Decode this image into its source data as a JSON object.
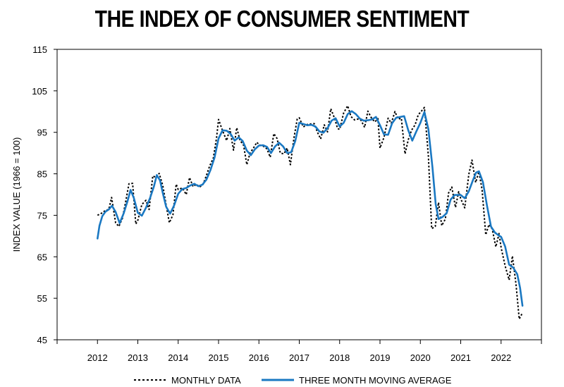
{
  "chart_data": {
    "type": "line",
    "title": "THE INDEX OF CONSUMER SENTIMENT",
    "ylabel": "INDEX VALUE (1966 = 100)",
    "xlabel": "",
    "ylim": [
      45,
      115
    ],
    "yticks": [
      "115",
      "105",
      "95",
      "85",
      "75",
      "65",
      "55",
      "45"
    ],
    "xlim": [
      2011,
      2023
    ],
    "xticks": [
      "2012",
      "2013",
      "2014",
      "2015",
      "2016",
      "2017",
      "2018",
      "2019",
      "2020",
      "2021",
      "2022"
    ],
    "grid": false,
    "legend_position": "bottom",
    "series": [
      {
        "name": "MONTHLY DATA",
        "color": "#000000",
        "style": "dotted",
        "points": [
          [
            2012.0,
            75.0
          ],
          [
            2012.1,
            75.5
          ],
          [
            2012.2,
            76.2
          ],
          [
            2012.28,
            76.4
          ],
          [
            2012.35,
            79.3
          ],
          [
            2012.45,
            73.2
          ],
          [
            2012.53,
            72.3
          ],
          [
            2012.62,
            74.3
          ],
          [
            2012.7,
            78.3
          ],
          [
            2012.78,
            82.6
          ],
          [
            2012.87,
            82.7
          ],
          [
            2012.95,
            72.9
          ],
          [
            2013.0,
            73.8
          ],
          [
            2013.1,
            77.6
          ],
          [
            2013.2,
            78.6
          ],
          [
            2013.28,
            76.4
          ],
          [
            2013.37,
            84.5
          ],
          [
            2013.45,
            84.1
          ],
          [
            2013.53,
            85.1
          ],
          [
            2013.62,
            82.1
          ],
          [
            2013.7,
            77.5
          ],
          [
            2013.78,
            73.2
          ],
          [
            2013.87,
            75.1
          ],
          [
            2013.95,
            82.5
          ],
          [
            2014.0,
            81.2
          ],
          [
            2014.1,
            81.6
          ],
          [
            2014.2,
            80.0
          ],
          [
            2014.28,
            84.1
          ],
          [
            2014.37,
            81.9
          ],
          [
            2014.45,
            82.5
          ],
          [
            2014.53,
            81.8
          ],
          [
            2014.62,
            82.5
          ],
          [
            2014.7,
            84.6
          ],
          [
            2014.78,
            86.9
          ],
          [
            2014.87,
            88.8
          ],
          [
            2014.95,
            93.6
          ],
          [
            2015.0,
            98.1
          ],
          [
            2015.1,
            95.4
          ],
          [
            2015.2,
            93.0
          ],
          [
            2015.28,
            95.9
          ],
          [
            2015.37,
            90.7
          ],
          [
            2015.45,
            96.1
          ],
          [
            2015.53,
            93.1
          ],
          [
            2015.62,
            91.9
          ],
          [
            2015.7,
            87.2
          ],
          [
            2015.78,
            90.0
          ],
          [
            2015.87,
            91.3
          ],
          [
            2015.95,
            92.6
          ],
          [
            2016.0,
            92.0
          ],
          [
            2016.1,
            91.7
          ],
          [
            2016.2,
            91.0
          ],
          [
            2016.28,
            89.0
          ],
          [
            2016.37,
            94.7
          ],
          [
            2016.45,
            93.5
          ],
          [
            2016.53,
            90.0
          ],
          [
            2016.62,
            89.8
          ],
          [
            2016.7,
            91.2
          ],
          [
            2016.78,
            87.2
          ],
          [
            2016.87,
            93.8
          ],
          [
            2016.95,
            98.2
          ],
          [
            2017.0,
            98.5
          ],
          [
            2017.1,
            96.3
          ],
          [
            2017.2,
            96.9
          ],
          [
            2017.28,
            97.0
          ],
          [
            2017.37,
            97.1
          ],
          [
            2017.45,
            95.0
          ],
          [
            2017.53,
            93.4
          ],
          [
            2017.62,
            96.8
          ],
          [
            2017.7,
            95.1
          ],
          [
            2017.78,
            100.7
          ],
          [
            2017.87,
            98.5
          ],
          [
            2017.95,
            95.9
          ],
          [
            2018.0,
            95.7
          ],
          [
            2018.1,
            99.7
          ],
          [
            2018.2,
            101.4
          ],
          [
            2018.28,
            98.8
          ],
          [
            2018.37,
            98.0
          ],
          [
            2018.45,
            98.2
          ],
          [
            2018.53,
            97.9
          ],
          [
            2018.62,
            96.2
          ],
          [
            2018.7,
            100.1
          ],
          [
            2018.78,
            98.6
          ],
          [
            2018.87,
            97.5
          ],
          [
            2018.95,
            98.3
          ],
          [
            2019.0,
            91.2
          ],
          [
            2019.1,
            93.8
          ],
          [
            2019.2,
            98.4
          ],
          [
            2019.28,
            97.2
          ],
          [
            2019.37,
            100.0
          ],
          [
            2019.45,
            98.2
          ],
          [
            2019.53,
            98.4
          ],
          [
            2019.62,
            89.8
          ],
          [
            2019.7,
            93.2
          ],
          [
            2019.78,
            95.5
          ],
          [
            2019.87,
            96.8
          ],
          [
            2019.95,
            99.3
          ],
          [
            2020.0,
            99.8
          ],
          [
            2020.1,
            101.0
          ],
          [
            2020.2,
            89.1
          ],
          [
            2020.28,
            71.8
          ],
          [
            2020.37,
            72.3
          ],
          [
            2020.45,
            78.1
          ],
          [
            2020.53,
            72.5
          ],
          [
            2020.62,
            74.1
          ],
          [
            2020.7,
            80.4
          ],
          [
            2020.78,
            81.8
          ],
          [
            2020.87,
            76.9
          ],
          [
            2020.95,
            80.7
          ],
          [
            2021.0,
            79.0
          ],
          [
            2021.1,
            76.8
          ],
          [
            2021.2,
            84.9
          ],
          [
            2021.28,
            88.3
          ],
          [
            2021.37,
            82.9
          ],
          [
            2021.45,
            85.5
          ],
          [
            2021.53,
            81.2
          ],
          [
            2021.62,
            70.3
          ],
          [
            2021.7,
            72.8
          ],
          [
            2021.78,
            71.7
          ],
          [
            2021.87,
            67.4
          ],
          [
            2021.95,
            70.6
          ],
          [
            2022.0,
            67.2
          ],
          [
            2022.1,
            62.8
          ],
          [
            2022.2,
            59.4
          ],
          [
            2022.28,
            65.2
          ],
          [
            2022.37,
            58.4
          ],
          [
            2022.45,
            50.0
          ],
          [
            2022.53,
            51.5
          ]
        ]
      },
      {
        "name": "THREE MONTH MOVING AVERAGE",
        "color": "#1a78c2",
        "style": "solid",
        "points": [
          [
            2012.0,
            69.4
          ],
          [
            2012.05,
            72.5
          ],
          [
            2012.12,
            74.8
          ],
          [
            2012.2,
            75.9
          ],
          [
            2012.28,
            76.4
          ],
          [
            2012.36,
            77.3
          ],
          [
            2012.45,
            75.8
          ],
          [
            2012.55,
            73.1
          ],
          [
            2012.65,
            75.5
          ],
          [
            2012.75,
            78.6
          ],
          [
            2012.82,
            81.1
          ],
          [
            2012.9,
            79.2
          ],
          [
            2013.0,
            75.6
          ],
          [
            2013.1,
            74.9
          ],
          [
            2013.2,
            76.8
          ],
          [
            2013.3,
            79.1
          ],
          [
            2013.4,
            82.0
          ],
          [
            2013.47,
            84.7
          ],
          [
            2013.55,
            83.4
          ],
          [
            2013.62,
            80.3
          ],
          [
            2013.7,
            77.1
          ],
          [
            2013.8,
            75.4
          ],
          [
            2013.9,
            77.4
          ],
          [
            2014.0,
            80.2
          ],
          [
            2014.1,
            81.3
          ],
          [
            2014.2,
            81.6
          ],
          [
            2014.3,
            82.2
          ],
          [
            2014.4,
            82.6
          ],
          [
            2014.5,
            82.0
          ],
          [
            2014.6,
            82.4
          ],
          [
            2014.7,
            83.6
          ],
          [
            2014.8,
            85.9
          ],
          [
            2014.9,
            88.9
          ],
          [
            2015.0,
            93.5
          ],
          [
            2015.1,
            95.5
          ],
          [
            2015.2,
            95.4
          ],
          [
            2015.3,
            94.6
          ],
          [
            2015.4,
            93.0
          ],
          [
            2015.5,
            93.8
          ],
          [
            2015.6,
            92.9
          ],
          [
            2015.7,
            90.6
          ],
          [
            2015.8,
            89.5
          ],
          [
            2015.9,
            90.9
          ],
          [
            2016.0,
            91.8
          ],
          [
            2016.1,
            91.9
          ],
          [
            2016.2,
            91.5
          ],
          [
            2016.3,
            90.0
          ],
          [
            2016.4,
            91.6
          ],
          [
            2016.5,
            92.5
          ],
          [
            2016.6,
            91.6
          ],
          [
            2016.7,
            90.0
          ],
          [
            2016.8,
            90.2
          ],
          [
            2016.9,
            92.9
          ],
          [
            2017.0,
            97.3
          ],
          [
            2017.1,
            97.0
          ],
          [
            2017.2,
            96.7
          ],
          [
            2017.3,
            96.8
          ],
          [
            2017.4,
            96.4
          ],
          [
            2017.5,
            95.2
          ],
          [
            2017.6,
            94.9
          ],
          [
            2017.7,
            96.0
          ],
          [
            2017.8,
            97.8
          ],
          [
            2017.9,
            98.4
          ],
          [
            2018.0,
            96.4
          ],
          [
            2018.1,
            97.3
          ],
          [
            2018.2,
            99.4
          ],
          [
            2018.3,
            100.1
          ],
          [
            2018.4,
            99.4
          ],
          [
            2018.5,
            98.3
          ],
          [
            2018.6,
            97.8
          ],
          [
            2018.7,
            97.9
          ],
          [
            2018.8,
            98.1
          ],
          [
            2018.9,
            98.7
          ],
          [
            2019.0,
            96.7
          ],
          [
            2019.1,
            94.5
          ],
          [
            2019.2,
            94.4
          ],
          [
            2019.3,
            97.2
          ],
          [
            2019.4,
            98.5
          ],
          [
            2019.5,
            98.7
          ],
          [
            2019.6,
            98.9
          ],
          [
            2019.7,
            95.5
          ],
          [
            2019.8,
            93.0
          ],
          [
            2019.9,
            95.2
          ],
          [
            2020.0,
            97.3
          ],
          [
            2020.1,
            99.9
          ],
          [
            2020.2,
            95.7
          ],
          [
            2020.3,
            86.6
          ],
          [
            2020.38,
            77.7
          ],
          [
            2020.45,
            74.1
          ],
          [
            2020.55,
            74.6
          ],
          [
            2020.65,
            75.5
          ],
          [
            2020.75,
            78.8
          ],
          [
            2020.85,
            79.9
          ],
          [
            2020.95,
            79.9
          ],
          [
            2021.0,
            79.9
          ],
          [
            2021.1,
            79.1
          ],
          [
            2021.2,
            80.8
          ],
          [
            2021.3,
            83.4
          ],
          [
            2021.38,
            85.3
          ],
          [
            2021.45,
            85.6
          ],
          [
            2021.55,
            83.0
          ],
          [
            2021.65,
            77.4
          ],
          [
            2021.75,
            72.3
          ],
          [
            2021.85,
            70.8
          ],
          [
            2021.95,
            70.1
          ],
          [
            2022.0,
            69.8
          ],
          [
            2022.1,
            67.5
          ],
          [
            2022.2,
            63.1
          ],
          [
            2022.3,
            62.4
          ],
          [
            2022.4,
            60.8
          ],
          [
            2022.47,
            57.5
          ],
          [
            2022.53,
            53.2
          ]
        ]
      }
    ]
  }
}
